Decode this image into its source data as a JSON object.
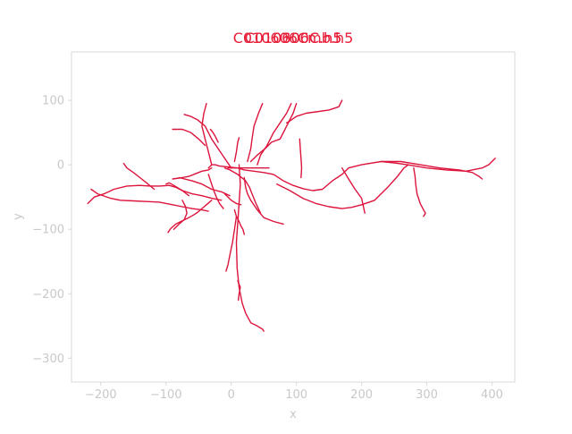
{
  "chart_data": {
    "type": "line",
    "title_overlay": [
      "C010600C.h5",
      "C010306C.h5",
      "C010606Cmb.h5"
    ],
    "title_color": "#e8203a",
    "trace_color": "#dc143c",
    "xlabel": "x",
    "ylabel": "y",
    "xlim": [
      -245,
      435
    ],
    "ylim": [
      -337,
      175
    ],
    "xticks": [
      -200,
      -100,
      0,
      100,
      200,
      300,
      400
    ],
    "xtick_labels": [
      "−200",
      "−100",
      "0",
      "100",
      "200",
      "300",
      "400"
    ],
    "yticks": [
      100,
      0,
      -100,
      -200,
      -300
    ],
    "ytick_labels": [
      "100",
      "0",
      "−100",
      "−200",
      "−300"
    ],
    "frame_color": "#d8d8d8",
    "grid": false,
    "series": [
      {
        "x": [
          -220,
          -210,
          -195,
          -180,
          -160,
          -140,
          -125,
          -110,
          -95,
          -85,
          -75,
          -60,
          -45,
          -30,
          -15
        ],
        "y": [
          -60,
          -50,
          -45,
          -38,
          -33,
          -32,
          -33,
          -33,
          -32,
          -35,
          -40,
          -45,
          -48,
          -52,
          -55
        ]
      },
      {
        "x": [
          -215,
          -205,
          -185,
          -170,
          -150,
          -130,
          -110,
          -90,
          -75,
          -60,
          -45,
          -35
        ],
        "y": [
          -38,
          -45,
          -52,
          -55,
          -56,
          -57,
          -58,
          -62,
          -65,
          -68,
          -70,
          -72
        ]
      },
      {
        "x": [
          -165,
          -160,
          -150,
          -140,
          -130,
          -118
        ],
        "y": [
          2,
          -5,
          -12,
          -20,
          -28,
          -38
        ]
      },
      {
        "x": [
          -100,
          -95,
          -88,
          -75,
          -65
        ],
        "y": [
          -30,
          -28,
          -32,
          -40,
          -48
        ]
      },
      {
        "x": [
          -30,
          -38,
          -45,
          -52,
          -58,
          -65,
          -75,
          -85,
          -93,
          -97
        ],
        "y": [
          -55,
          -62,
          -68,
          -74,
          -78,
          -82,
          -87,
          -92,
          -99,
          -105
        ]
      },
      {
        "x": [
          -75,
          -70,
          -68,
          -72,
          -80,
          -88
        ],
        "y": [
          -55,
          -65,
          -75,
          -85,
          -92,
          -100
        ]
      },
      {
        "x": [
          -5,
          0,
          10,
          20,
          35,
          50,
          65,
          80,
          95,
          110,
          125,
          140,
          155,
          170,
          180,
          200,
          230,
          260,
          290,
          320,
          350,
          370,
          380,
          385
        ],
        "y": [
          -5,
          -5,
          -5,
          -8,
          -10,
          -12,
          -15,
          -25,
          -32,
          -37,
          -40,
          -38,
          -25,
          -15,
          -5,
          0,
          5,
          5,
          0,
          -5,
          -8,
          -12,
          -18,
          -22
        ]
      },
      {
        "x": [
          230,
          250,
          270,
          300,
          330,
          360,
          385,
          395,
          405
        ],
        "y": [
          5,
          3,
          0,
          -5,
          -8,
          -10,
          -5,
          0,
          10
        ]
      },
      {
        "x": [
          70,
          90,
          110,
          130,
          150,
          170,
          185,
          200,
          220,
          240,
          255,
          265,
          272
        ],
        "y": [
          -30,
          -40,
          -52,
          -60,
          -65,
          -68,
          -66,
          -62,
          -55,
          -35,
          -18,
          -5,
          0
        ]
      },
      {
        "x": [
          170,
          180,
          190,
          200,
          205
        ],
        "y": [
          -5,
          -22,
          -38,
          -52,
          -75
        ]
      },
      {
        "x": [
          280,
          282,
          283,
          285,
          290,
          295,
          298,
          295
        ],
        "y": [
          -5,
          -18,
          -30,
          -45,
          -60,
          -70,
          -75,
          -80
        ]
      },
      {
        "x": [
          -10,
          -2,
          10,
          22,
          28,
          32,
          38,
          45
        ],
        "y": [
          -5,
          -8,
          -15,
          -25,
          -35,
          -45,
          -60,
          -75
        ]
      },
      {
        "x": [
          12,
          14,
          12,
          10,
          8,
          9,
          12,
          17,
          22,
          30,
          40,
          48,
          50
        ],
        "y": [
          0,
          -30,
          -60,
          -90,
          -120,
          -160,
          -190,
          -215,
          -230,
          -245,
          -250,
          -255,
          -258
        ]
      },
      {
        "x": [
          8,
          5,
          2,
          -2,
          -5,
          -8
        ],
        "y": [
          -80,
          -100,
          -120,
          -140,
          -155,
          -165
        ]
      },
      {
        "x": [
          10,
          14,
          12,
          11
        ],
        "y": [
          -180,
          -190,
          -200,
          -210
        ]
      },
      {
        "x": [
          5,
          8,
          12,
          15,
          18,
          20
        ],
        "y": [
          -70,
          -80,
          -88,
          -95,
          -100,
          -108
        ]
      },
      {
        "x": [
          20,
          22,
          25,
          30,
          40,
          50,
          65,
          80
        ],
        "y": [
          -20,
          -35,
          -45,
          -55,
          -70,
          -82,
          -88,
          -92
        ]
      },
      {
        "x": [
          -30,
          -35,
          -45,
          -55,
          -65,
          -75,
          -90
        ],
        "y": [
          -5,
          -8,
          -10,
          -14,
          -18,
          -20,
          -22
        ]
      },
      {
        "x": [
          -35,
          -32,
          -30,
          -28,
          -25,
          -18,
          -8,
          0,
          10,
          22,
          35,
          48,
          58
        ],
        "y": [
          -5,
          -2,
          0,
          0,
          0,
          -2,
          -3,
          -4,
          -5,
          -5,
          -5,
          -5,
          -5
        ]
      },
      {
        "x": [
          -35,
          -30,
          -26,
          -22,
          -18,
          -12
        ],
        "y": [
          -15,
          -30,
          -42,
          -52,
          -60,
          -68
        ]
      },
      {
        "x": [
          40,
          45,
          55,
          65,
          75,
          85,
          92
        ],
        "y": [
          0,
          15,
          30,
          50,
          65,
          80,
          95
        ]
      },
      {
        "x": [
          30,
          40,
          52,
          62,
          75,
          85,
          95,
          100
        ],
        "y": [
          5,
          15,
          25,
          35,
          40,
          60,
          80,
          95
        ]
      },
      {
        "x": [
          85,
          90,
          100,
          115,
          130,
          150,
          165,
          170
        ],
        "y": [
          65,
          68,
          75,
          80,
          82,
          85,
          90,
          100
        ]
      },
      {
        "x": [
          105,
          106,
          107,
          108,
          107
        ],
        "y": [
          40,
          25,
          10,
          -5,
          -20
        ]
      },
      {
        "x": [
          0,
          -10,
          -20,
          -30,
          -40,
          -52,
          -62,
          -72
        ],
        "y": [
          -5,
          10,
          25,
          40,
          60,
          70,
          75,
          78
        ]
      },
      {
        "x": [
          -30,
          -35,
          -40,
          -45,
          -42,
          -38
        ],
        "y": [
          0,
          20,
          40,
          60,
          80,
          95
        ]
      },
      {
        "x": [
          -40,
          -50,
          -62,
          -75,
          -90
        ],
        "y": [
          30,
          40,
          50,
          55,
          55
        ]
      },
      {
        "x": [
          -20,
          -25,
          -28,
          -32
        ],
        "y": [
          35,
          45,
          50,
          55
        ]
      },
      {
        "x": [
          25,
          30,
          32,
          35,
          42,
          48
        ],
        "y": [
          5,
          25,
          40,
          60,
          80,
          95
        ]
      },
      {
        "x": [
          5,
          8,
          10,
          12
        ],
        "y": [
          5,
          20,
          35,
          42
        ]
      },
      {
        "x": [
          -10,
          -5,
          0,
          8,
          15
        ],
        "y": [
          -45,
          -50,
          -55,
          -60,
          -62
        ]
      },
      {
        "x": [
          -80,
          -60,
          -45,
          -30,
          -15,
          -2
        ],
        "y": [
          -20,
          -25,
          -30,
          -38,
          -42,
          -48
        ]
      }
    ]
  }
}
